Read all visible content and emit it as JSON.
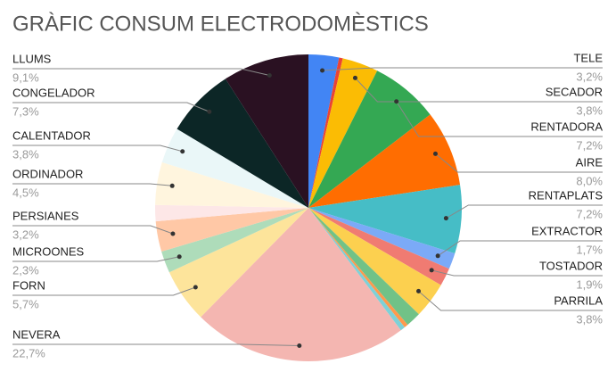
{
  "chart_data": {
    "type": "pie",
    "title": "GRÀFIC CONSUM ELECTRODOMÈSTICS",
    "categories": [
      "TELE",
      null,
      "SECADOR",
      "RENTADORA",
      "AIRE",
      "RENTAPLATS",
      "EXTRACTOR",
      "TOSTADOR",
      "PARRILA",
      null,
      null,
      null,
      "NEVERA",
      "FORN",
      "MICROONES",
      "PERSIANES",
      null,
      "ORDINADOR",
      "CALENTADOR",
      "CONGELADOR",
      "LLUMS"
    ],
    "values": [
      3.2,
      0.4,
      3.8,
      7.2,
      8.0,
      7.2,
      1.7,
      1.9,
      3.8,
      1.6,
      0.4,
      0.5,
      22.7,
      5.7,
      2.3,
      3.2,
      1.7,
      4.5,
      3.8,
      7.3,
      9.1
    ],
    "value_labels": [
      "3,2%",
      null,
      "3,8%",
      "7,2%",
      "8,0%",
      "7,2%",
      "1,7%",
      "1,9%",
      "3,8%",
      null,
      null,
      null,
      "22,7%",
      "5,7%",
      "2,3%",
      "3,2%",
      null,
      "4,5%",
      "3,8%",
      "7,3%",
      "9,1%"
    ],
    "colors": [
      "#4285f4",
      "#ea4335",
      "#fbbc04",
      "#34a853",
      "#ff6d01",
      "#46bdc6",
      "#7baaf7",
      "#f07b72",
      "#fcd04f",
      "#71c287",
      "#ff994d",
      "#7ed1d7",
      "#f4b6b1",
      "#fde49b",
      "#aedcba",
      "#ffc8a6",
      "#fde7e7",
      "#fff5de",
      "#eaf7f8",
      "#0c2626",
      "#2a1122"
    ]
  }
}
